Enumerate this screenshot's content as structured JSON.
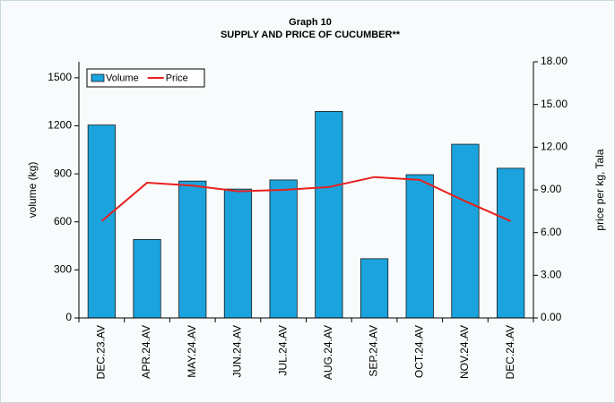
{
  "chart_data": {
    "type": "bar_line",
    "title": "Graph 10",
    "subtitle": "SUPPLY AND PRICE OF CUCUMBER**",
    "y_label": "volume (kg)",
    "y2_label": "price per kg, Tala",
    "categories": [
      "DEC.23.AV",
      "APR.24.AV",
      "MAY.24.AV",
      "JUN.24.AV",
      "JUL.24.AV",
      "AUG.24.AV",
      "SEP.24.AV",
      "OCT.24.AV",
      "NOV.24.AV",
      "DEC.24.AV"
    ],
    "series": [
      {
        "name": "Volume",
        "type": "bar",
        "color": "#1ba3dd",
        "values": [
          1205,
          490,
          855,
          805,
          862,
          1290,
          370,
          895,
          1085,
          935
        ]
      },
      {
        "name": "Price",
        "type": "line",
        "axis": "y2",
        "color": "#e8201e",
        "values": [
          6.8,
          9.5,
          9.3,
          8.9,
          9.0,
          9.2,
          9.9,
          9.7,
          8.2,
          6.8
        ]
      }
    ],
    "ylim": [
      0,
      1600
    ],
    "yticks": [
      0,
      300,
      600,
      900,
      1200,
      1500
    ],
    "y2lim": [
      0,
      18
    ],
    "y2ticks": [
      {
        "value": 0,
        "label": "0.00"
      },
      {
        "value": 3,
        "label": "3.00"
      },
      {
        "value": 6,
        "label": "6.00"
      },
      {
        "value": 9,
        "label": "9.00"
      },
      {
        "value": 12,
        "label": "12.00"
      },
      {
        "value": 15,
        "label": "15.00"
      },
      {
        "value": 18,
        "label": "18.00"
      }
    ],
    "legend": "top-left"
  }
}
